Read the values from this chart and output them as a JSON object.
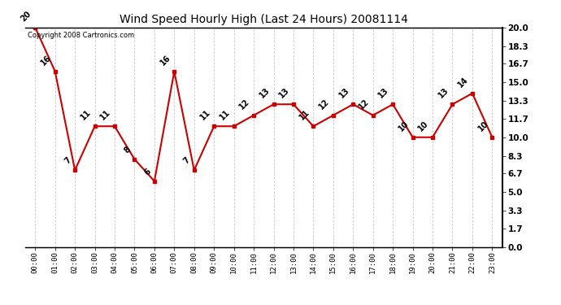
{
  "title": "Wind Speed Hourly High (Last 24 Hours) 20081114",
  "hours": [
    "00:00",
    "01:00",
    "02:00",
    "03:00",
    "04:00",
    "05:00",
    "06:00",
    "07:00",
    "08:00",
    "09:00",
    "10:00",
    "11:00",
    "12:00",
    "13:00",
    "14:00",
    "15:00",
    "16:00",
    "17:00",
    "18:00",
    "19:00",
    "20:00",
    "21:00",
    "22:00",
    "23:00"
  ],
  "values": [
    20,
    16,
    7,
    11,
    11,
    8,
    6,
    16,
    7,
    11,
    11,
    12,
    13,
    13,
    11,
    12,
    13,
    12,
    13,
    10,
    10,
    13,
    14,
    10
  ],
  "line_color": "#cc0000",
  "marker_color": "#cc0000",
  "bg_color": "#ffffff",
  "plot_bg_color": "#ffffff",
  "grid_color": "#c8c8c8",
  "title_color": "#000000",
  "label_color": "#000000",
  "copyright_text": "Copyright 2008 Cartronics.com",
  "yticks_right": [
    0.0,
    1.7,
    3.3,
    5.0,
    6.7,
    8.3,
    10.0,
    11.7,
    13.3,
    15.0,
    16.7,
    18.3,
    20.0
  ],
  "ylim": [
    0.0,
    20.0
  ]
}
